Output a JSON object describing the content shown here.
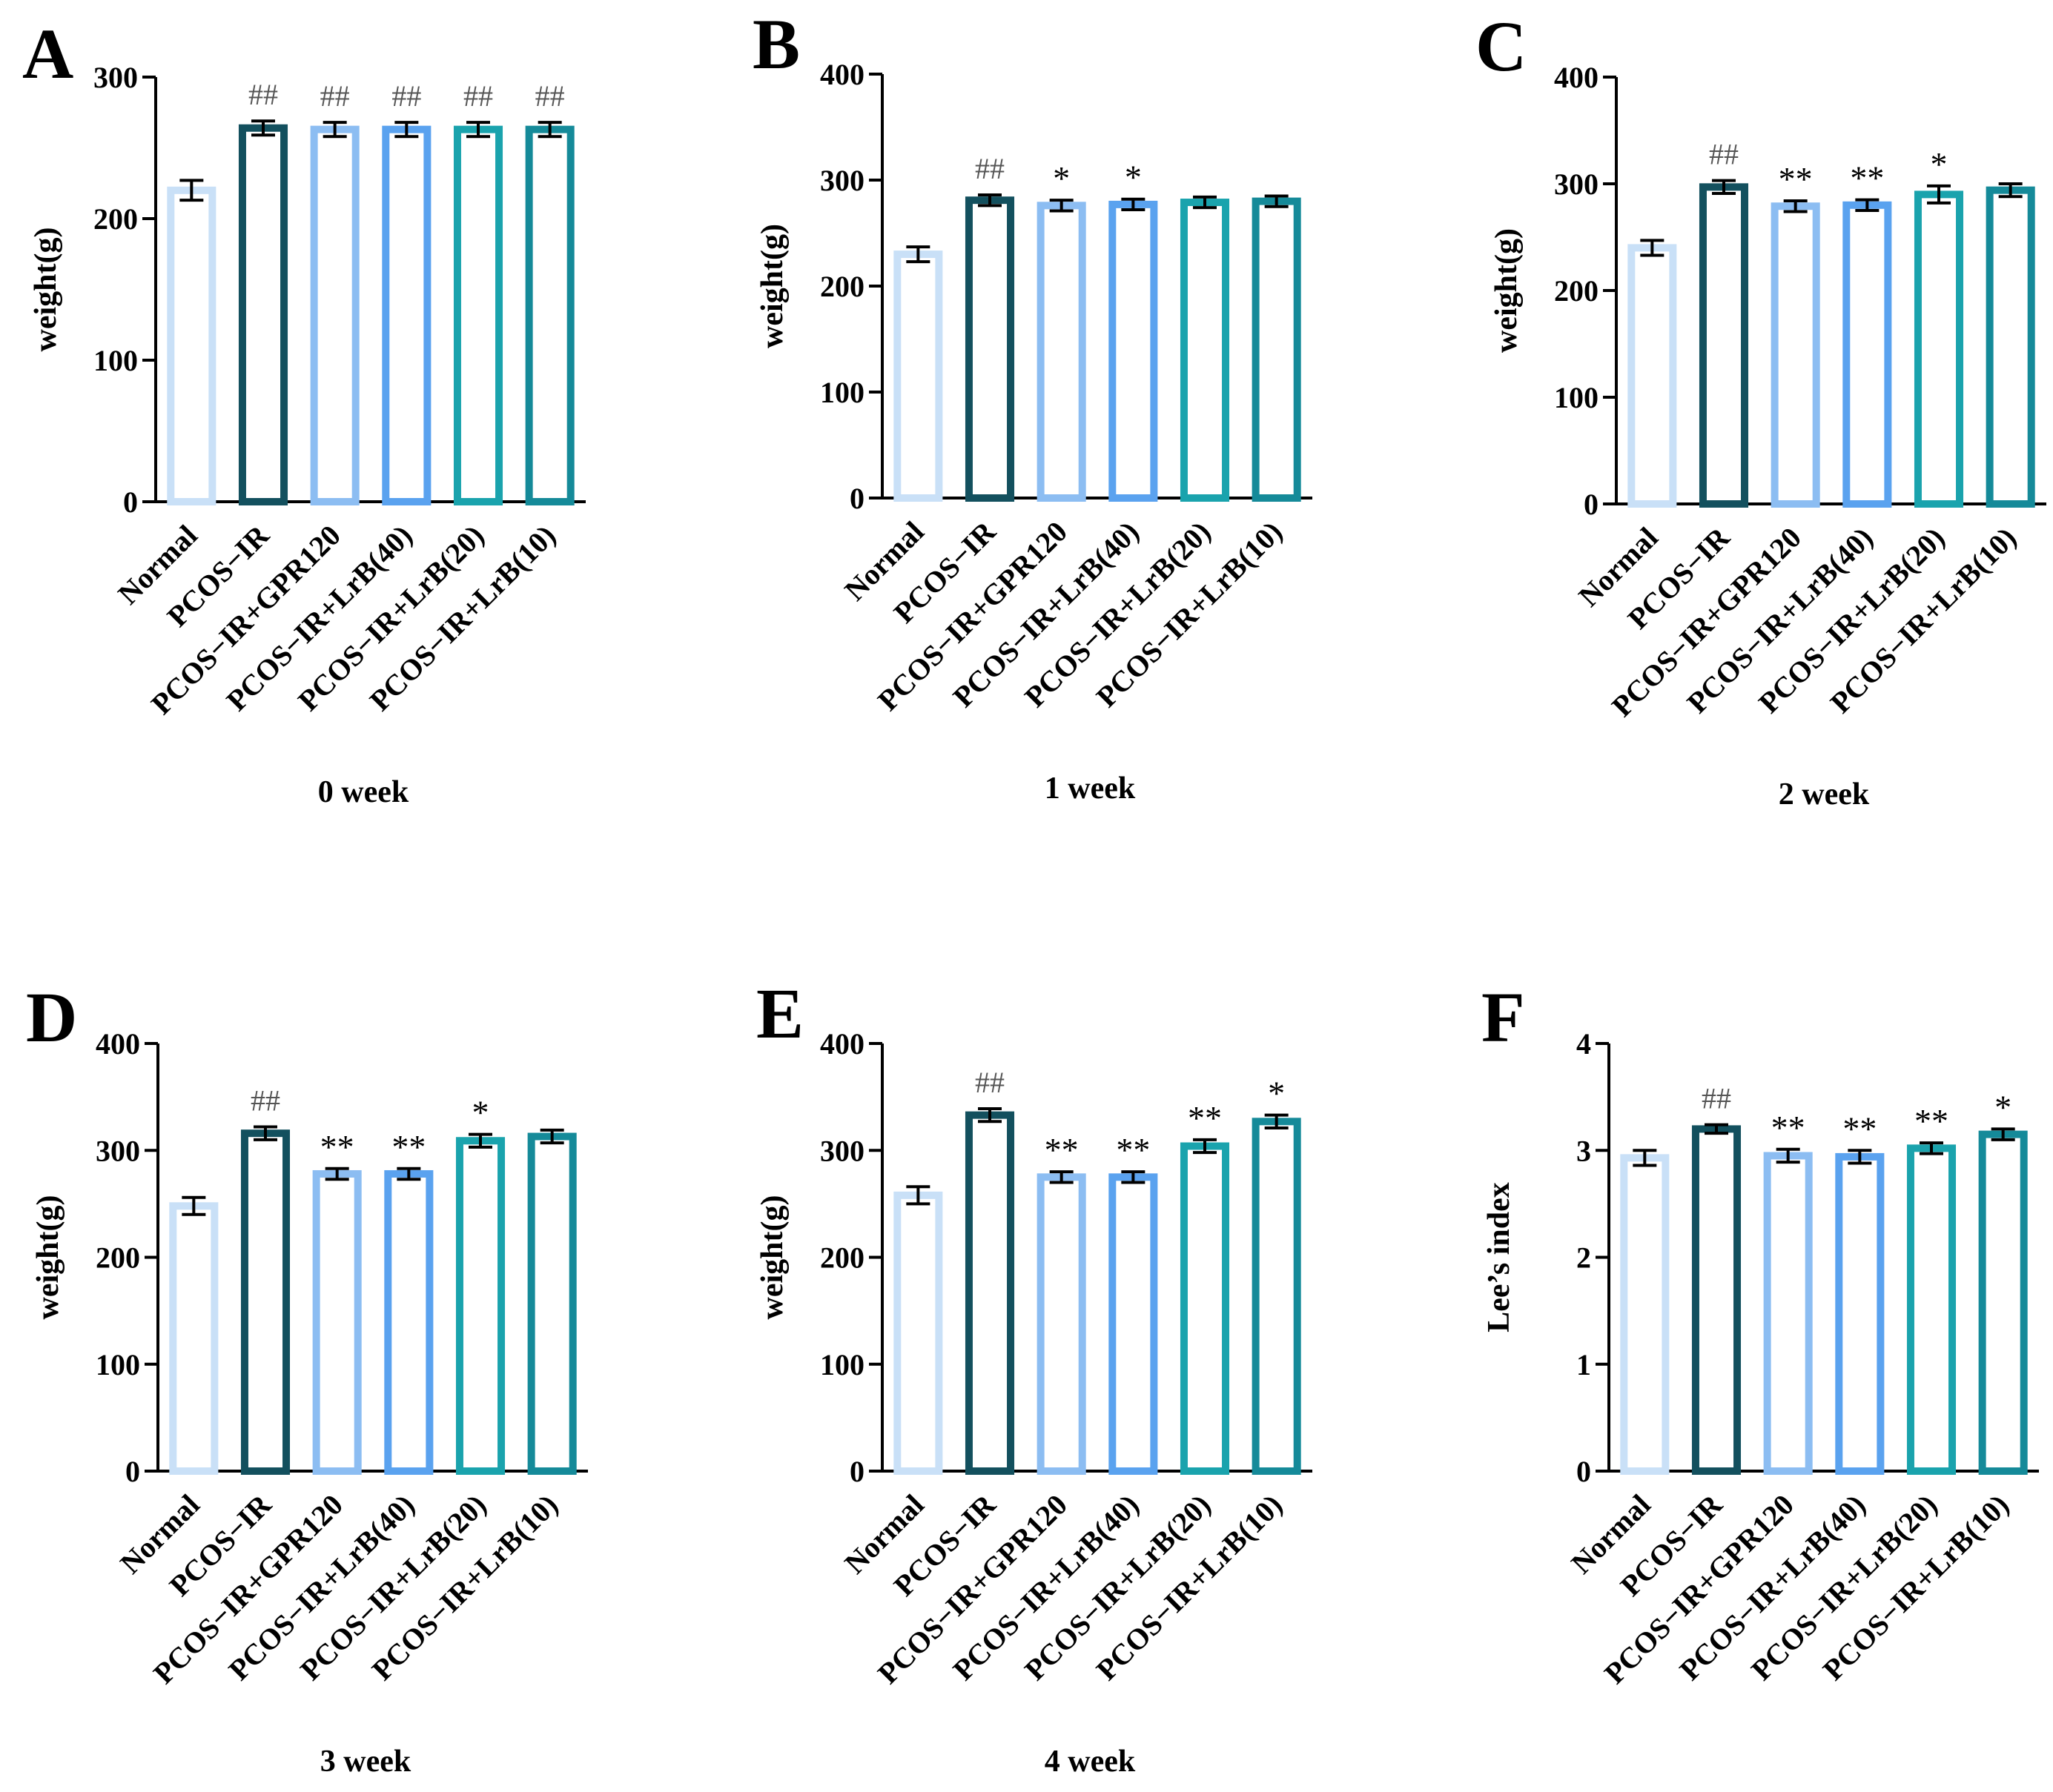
{
  "figure": {
    "colors": {
      "axis": "#000000",
      "bar_strokes": [
        "#c9e0f7",
        "#13505e",
        "#8cbdf2",
        "#5aa2ef",
        "#1aa3ad",
        "#158a99"
      ]
    }
  },
  "chart_data": [
    {
      "panel": "A",
      "type": "bar",
      "title": "",
      "xlabel": "0 week",
      "ylabel": "weight(g)",
      "ylim": [
        0,
        300
      ],
      "yticks": [
        0,
        100,
        200,
        300
      ],
      "categories": [
        "Normal",
        "PCOS−IR",
        "PCOS−IR+GPR120",
        "PCOS−IR+LrB(40)",
        "PCOS−IR+LrB(20)",
        "PCOS−IR+LrB(10)"
      ],
      "values": [
        220,
        264,
        263,
        263,
        263,
        263
      ],
      "errors": [
        7,
        5,
        5,
        5,
        5,
        5
      ],
      "annotations": [
        "",
        "##",
        "##",
        "##",
        "##",
        "##"
      ]
    },
    {
      "panel": "B",
      "type": "bar",
      "title": "",
      "xlabel": "1 week",
      "ylabel": "weight(g)",
      "ylim": [
        0,
        400
      ],
      "yticks": [
        0,
        100,
        200,
        300,
        400
      ],
      "categories": [
        "Normal",
        "PCOS−IR",
        "PCOS−IR+GPR120",
        "PCOS−IR+LrB(40)",
        "PCOS−IR+LrB(20)",
        "PCOS−IR+LrB(10)"
      ],
      "values": [
        230,
        281,
        276,
        277,
        279,
        280
      ],
      "errors": [
        7,
        5,
        5,
        5,
        5,
        5
      ],
      "annotations": [
        "",
        "##",
        "*",
        "*",
        "",
        ""
      ]
    },
    {
      "panel": "C",
      "type": "bar",
      "title": "",
      "xlabel": "2 week",
      "ylabel": "weight(g)",
      "ylim": [
        0,
        400
      ],
      "yticks": [
        0,
        100,
        200,
        300,
        400
      ],
      "categories": [
        "Normal",
        "PCOS−IR",
        "PCOS−IR+GPR120",
        "PCOS−IR+LrB(40)",
        "PCOS−IR+LrB(20)",
        "PCOS−IR+LrB(10)"
      ],
      "values": [
        240,
        297,
        279,
        280,
        290,
        294
      ],
      "errors": [
        7,
        6,
        5,
        5,
        8,
        6
      ],
      "annotations": [
        "",
        "##",
        "**",
        "**",
        "*",
        ""
      ]
    },
    {
      "panel": "D",
      "type": "bar",
      "title": "",
      "xlabel": "3 week",
      "ylabel": "weight(g)",
      "ylim": [
        0,
        400
      ],
      "yticks": [
        0,
        100,
        200,
        300,
        400
      ],
      "categories": [
        "Normal",
        "PCOS−IR",
        "PCOS−IR+GPR120",
        "PCOS−IR+LrB(40)",
        "PCOS−IR+LrB(20)",
        "PCOS−IR+LrB(10)"
      ],
      "values": [
        248,
        316,
        278,
        278,
        309,
        313
      ],
      "errors": [
        8,
        6,
        5,
        5,
        6,
        6
      ],
      "annotations": [
        "",
        "##",
        "**",
        "**",
        "*",
        ""
      ]
    },
    {
      "panel": "E",
      "type": "bar",
      "title": "",
      "xlabel": "4 week",
      "ylabel": "weight(g)",
      "ylim": [
        0,
        400
      ],
      "yticks": [
        0,
        100,
        200,
        300,
        400
      ],
      "categories": [
        "Normal",
        "PCOS−IR",
        "PCOS−IR+GPR120",
        "PCOS−IR+LrB(40)",
        "PCOS−IR+LrB(20)",
        "PCOS−IR+LrB(10)"
      ],
      "values": [
        258,
        333,
        275,
        275,
        304,
        327
      ],
      "errors": [
        8,
        6,
        5,
        5,
        6,
        6
      ],
      "annotations": [
        "",
        "##",
        "**",
        "**",
        "**",
        "*"
      ]
    },
    {
      "panel": "F",
      "type": "bar",
      "title": "",
      "xlabel": "",
      "ylabel": "Lee’s index",
      "ylim": [
        0,
        4
      ],
      "yticks": [
        0,
        1,
        2,
        3,
        4
      ],
      "categories": [
        "Normal",
        "PCOS−IR",
        "PCOS−IR+GPR120",
        "PCOS−IR+LrB(40)",
        "PCOS−IR+LrB(20)",
        "PCOS−IR+LrB(10)"
      ],
      "values": [
        2.93,
        3.2,
        2.95,
        2.94,
        3.02,
        3.15
      ],
      "errors": [
        0.07,
        0.04,
        0.06,
        0.06,
        0.05,
        0.05
      ],
      "annotations": [
        "",
        "##",
        "**",
        "**",
        "**",
        "*"
      ]
    }
  ]
}
